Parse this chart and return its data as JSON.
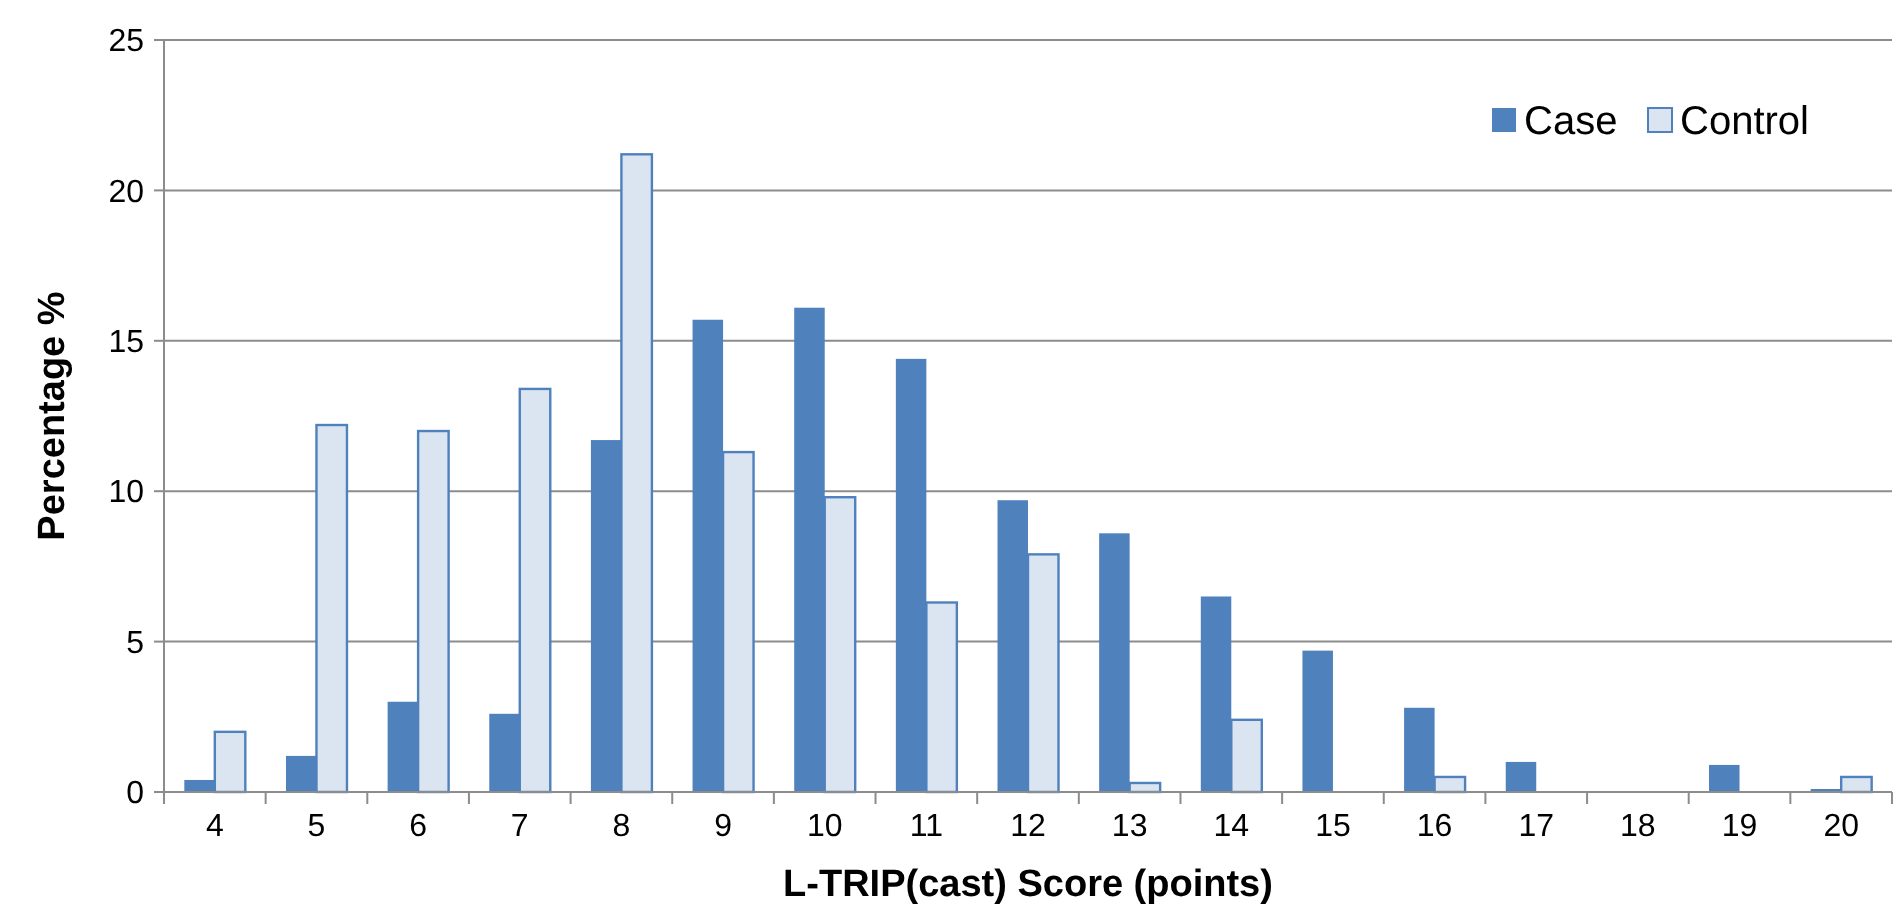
{
  "chart_data": {
    "type": "bar",
    "xlabel": "L-TRIP(cast) Score (points)",
    "ylabel": "Percentage %",
    "categories": [
      "4",
      "5",
      "6",
      "7",
      "8",
      "9",
      "10",
      "11",
      "12",
      "13",
      "14",
      "15",
      "16",
      "17",
      "18",
      "19",
      "20"
    ],
    "series": [
      {
        "name": "Case",
        "color": "#4f81bd",
        "values": [
          0.4,
          1.2,
          3.0,
          2.6,
          11.7,
          15.7,
          16.1,
          14.4,
          9.7,
          8.6,
          6.5,
          4.7,
          2.8,
          1.0,
          0,
          0.9,
          0.1
        ]
      },
      {
        "name": "Control",
        "color": "#dbe5f1",
        "values": [
          2.0,
          12.2,
          12.0,
          13.4,
          21.2,
          11.3,
          9.8,
          6.3,
          7.9,
          0.3,
          2.4,
          0,
          0.5,
          0,
          0,
          0,
          0.5
        ]
      }
    ],
    "ylim": [
      0,
      25
    ],
    "yticks": [
      0,
      5,
      10,
      15,
      20,
      25
    ],
    "grid": "y",
    "legend": "top right"
  }
}
